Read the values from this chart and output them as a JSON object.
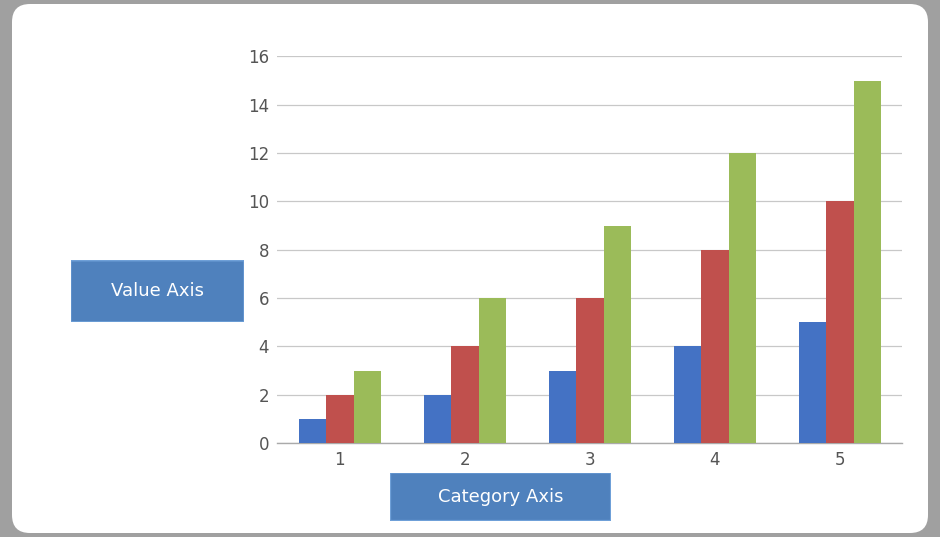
{
  "categories": [
    1,
    2,
    3,
    4,
    5
  ],
  "series1": [
    1,
    2,
    3,
    4,
    5
  ],
  "series2": [
    2,
    4,
    6,
    8,
    10
  ],
  "series3": [
    3,
    6,
    9,
    12,
    15
  ],
  "color1": "#4472C4",
  "color2": "#C0504D",
  "color3": "#9BBB59",
  "ylim": [
    0,
    16
  ],
  "yticks": [
    0,
    2,
    4,
    6,
    8,
    10,
    12,
    14,
    16
  ],
  "xlabel_text": "Category Axis",
  "ylabel_text": "Value Axis",
  "bg_gray": "#a0a0a0",
  "bg_white": "#ffffff",
  "bar_width": 0.22,
  "box_color": "#4F81BD",
  "box_text_color": "#ffffff",
  "grid_color": "#c8c8c8",
  "tick_color": "#555555"
}
